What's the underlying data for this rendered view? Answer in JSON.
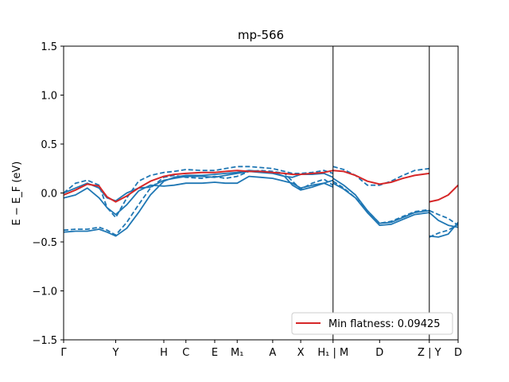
{
  "chart_data": {
    "type": "line",
    "title": "mp-566",
    "xlabel": "",
    "ylabel": "E − E_F (eV)",
    "ylim": [
      -1.5,
      1.5
    ],
    "xlim": [
      0,
      10
    ],
    "yticks": [
      -1.5,
      -1.0,
      -0.5,
      0.0,
      0.5,
      1.0,
      1.5
    ],
    "ytick_labels": [
      "−1.5",
      "−1.0",
      "−0.5",
      "0.0",
      "0.5",
      "1.0",
      "1.5"
    ],
    "xticks": [
      {
        "x": 0.0,
        "label": "Γ"
      },
      {
        "x": 1.32,
        "label": "Y"
      },
      {
        "x": 2.54,
        "label": "H"
      },
      {
        "x": 3.1,
        "label": "C"
      },
      {
        "x": 3.83,
        "label": "E"
      },
      {
        "x": 4.4,
        "label": "M₁"
      },
      {
        "x": 5.3,
        "label": "A"
      },
      {
        "x": 6.01,
        "label": "X"
      },
      {
        "x": 6.83,
        "label": "H₁ | M"
      },
      {
        "x": 8.01,
        "label": "D"
      },
      {
        "x": 9.27,
        "label": "Z | Y"
      },
      {
        "x": 10.0,
        "label": "D"
      }
    ],
    "legend": {
      "label": "Min flatness: 0.09425",
      "placement": "lower-right",
      "color": "#d62728"
    },
    "colors": {
      "bands": "#1f77b4",
      "flat_band": "#d62728"
    },
    "series": [
      {
        "style": "solid",
        "x": [
          0,
          0.3,
          0.6,
          0.9,
          1.1,
          1.32,
          1.6,
          1.9,
          2.2,
          2.54,
          2.8,
          3.1,
          3.5,
          3.83,
          4.1,
          4.4,
          4.7,
          5.0,
          5.3,
          5.6,
          5.8,
          6.01,
          6.3,
          6.6,
          6.83
        ],
        "y": [
          -0.05,
          -0.02,
          0.05,
          -0.05,
          -0.15,
          -0.22,
          -0.12,
          0.02,
          0.08,
          0.07,
          0.08,
          0.1,
          0.1,
          0.11,
          0.1,
          0.1,
          0.17,
          0.16,
          0.15,
          0.12,
          0.1,
          0.05,
          0.08,
          0.1,
          0.13
        ]
      },
      {
        "style": "solid",
        "x": [
          0,
          0.3,
          0.6,
          0.9,
          1.1,
          1.32,
          1.6,
          1.9,
          2.2,
          2.54,
          2.8,
          3.1,
          3.5,
          3.83,
          4.1,
          4.4,
          4.7,
          5.0,
          5.3,
          5.6,
          5.8,
          6.01,
          6.3,
          6.6,
          6.83
        ],
        "y": [
          0.0,
          0.05,
          0.1,
          0.05,
          -0.05,
          -0.08,
          0.0,
          0.05,
          0.06,
          0.13,
          0.15,
          0.17,
          0.17,
          0.16,
          0.18,
          0.2,
          0.22,
          0.21,
          0.2,
          0.17,
          0.16,
          0.19,
          0.19,
          0.2,
          0.16
        ]
      },
      {
        "style": "solid",
        "x": [
          0,
          0.3,
          0.6,
          0.9,
          1.1,
          1.32,
          1.6,
          1.9,
          2.2,
          2.54,
          2.8,
          3.1,
          3.5,
          3.83,
          4.1,
          4.4,
          4.7,
          5.0,
          5.3,
          5.6,
          5.8,
          6.01,
          6.3,
          6.6,
          6.83
        ],
        "y": [
          -0.4,
          -0.39,
          -0.39,
          -0.37,
          -0.4,
          -0.44,
          -0.36,
          -0.2,
          -0.02,
          0.12,
          0.16,
          0.18,
          0.18,
          0.19,
          0.2,
          0.21,
          0.23,
          0.22,
          0.21,
          0.17,
          0.08,
          0.03,
          0.06,
          0.1,
          0.06
        ]
      },
      {
        "style": "solid",
        "x": [
          6.83,
          7.1,
          7.4,
          7.7,
          8.01,
          8.3,
          8.6,
          8.9,
          9.27
        ],
        "y": [
          0.1,
          0.04,
          -0.05,
          -0.2,
          -0.33,
          -0.32,
          -0.27,
          -0.22,
          -0.2
        ]
      },
      {
        "style": "solid",
        "x": [
          6.83,
          7.1,
          7.4,
          7.7,
          8.01,
          8.3,
          8.6,
          8.9,
          9.27
        ],
        "y": [
          0.15,
          0.08,
          -0.02,
          -0.18,
          -0.31,
          -0.3,
          -0.25,
          -0.2,
          -0.18
        ]
      },
      {
        "style": "solid",
        "x": [
          9.27,
          9.5,
          9.75,
          10.0
        ],
        "y": [
          -0.44,
          -0.45,
          -0.42,
          -0.3
        ]
      },
      {
        "style": "solid",
        "x": [
          9.27,
          9.5,
          9.75,
          10.0
        ],
        "y": [
          -0.2,
          -0.28,
          -0.33,
          -0.35
        ]
      },
      {
        "style": "dashed",
        "x": [
          0,
          0.3,
          0.6,
          0.9,
          1.1,
          1.32,
          1.6,
          1.9,
          2.2,
          2.54,
          2.8,
          3.1,
          3.5,
          3.83,
          4.1,
          4.4,
          4.7,
          5.0,
          5.3,
          5.6,
          5.8,
          6.01,
          6.3,
          6.6,
          6.83
        ],
        "y": [
          0.0,
          0.1,
          0.13,
          0.08,
          -0.15,
          -0.25,
          -0.05,
          0.12,
          0.18,
          0.21,
          0.22,
          0.24,
          0.23,
          0.23,
          0.25,
          0.27,
          0.27,
          0.26,
          0.25,
          0.22,
          0.2,
          0.2,
          0.21,
          0.23,
          0.2
        ]
      },
      {
        "style": "dashed",
        "x": [
          0,
          0.3,
          0.6,
          0.9,
          1.1,
          1.32,
          1.6,
          1.9,
          2.2,
          2.54,
          2.8,
          3.1,
          3.5,
          3.83,
          4.1,
          4.4,
          4.7,
          5.0,
          5.3,
          5.6,
          5.8,
          6.01,
          6.3,
          6.6,
          6.83
        ],
        "y": [
          -0.38,
          -0.37,
          -0.37,
          -0.35,
          -0.38,
          -0.43,
          -0.3,
          -0.12,
          0.05,
          0.16,
          0.18,
          0.16,
          0.15,
          0.17,
          0.15,
          0.17,
          0.22,
          0.23,
          0.22,
          0.2,
          0.12,
          0.04,
          0.1,
          0.14,
          0.08
        ]
      },
      {
        "style": "dashed",
        "x": [
          6.83,
          7.1,
          7.4,
          7.7,
          8.01,
          8.3,
          8.6,
          8.9,
          9.27
        ],
        "y": [
          0.27,
          0.24,
          0.18,
          0.08,
          0.08,
          0.12,
          0.18,
          0.23,
          0.25
        ]
      },
      {
        "style": "dashed",
        "x": [
          6.83,
          7.1,
          7.4,
          7.7,
          8.01,
          8.3,
          8.6,
          8.9,
          9.27
        ],
        "y": [
          0.12,
          0.05,
          -0.05,
          -0.18,
          -0.31,
          -0.29,
          -0.24,
          -0.19,
          -0.17
        ]
      },
      {
        "style": "dashed",
        "x": [
          9.27,
          9.5,
          9.75,
          10.0
        ],
        "y": [
          -0.45,
          -0.41,
          -0.38,
          -0.32
        ]
      },
      {
        "style": "dashed",
        "x": [
          9.27,
          9.5,
          9.75,
          10.0
        ],
        "y": [
          -0.18,
          -0.22,
          -0.26,
          -0.33
        ]
      },
      {
        "style": "flat-band",
        "x": [
          0,
          0.3,
          0.6,
          0.9,
          1.1,
          1.32,
          1.6,
          1.9,
          2.2,
          2.54,
          2.8,
          3.1,
          3.5,
          3.83,
          4.1,
          4.4,
          4.7,
          5.0,
          5.3,
          5.6,
          5.8,
          6.01,
          6.3,
          6.6,
          6.83,
          7.1,
          7.4,
          7.7,
          8.01,
          8.3,
          8.6,
          8.9,
          9.27
        ],
        "y": [
          -0.02,
          0.03,
          0.09,
          0.07,
          -0.04,
          -0.09,
          -0.03,
          0.05,
          0.12,
          0.17,
          0.19,
          0.2,
          0.21,
          0.21,
          0.22,
          0.23,
          0.22,
          0.22,
          0.21,
          0.2,
          0.19,
          0.19,
          0.2,
          0.21,
          0.23,
          0.22,
          0.18,
          0.12,
          0.09,
          0.11,
          0.15,
          0.18,
          0.2
        ]
      },
      {
        "style": "flat-band",
        "x": [
          9.27,
          9.5,
          9.75,
          10.0
        ],
        "y": [
          -0.09,
          -0.07,
          -0.02,
          0.08
        ]
      }
    ]
  }
}
